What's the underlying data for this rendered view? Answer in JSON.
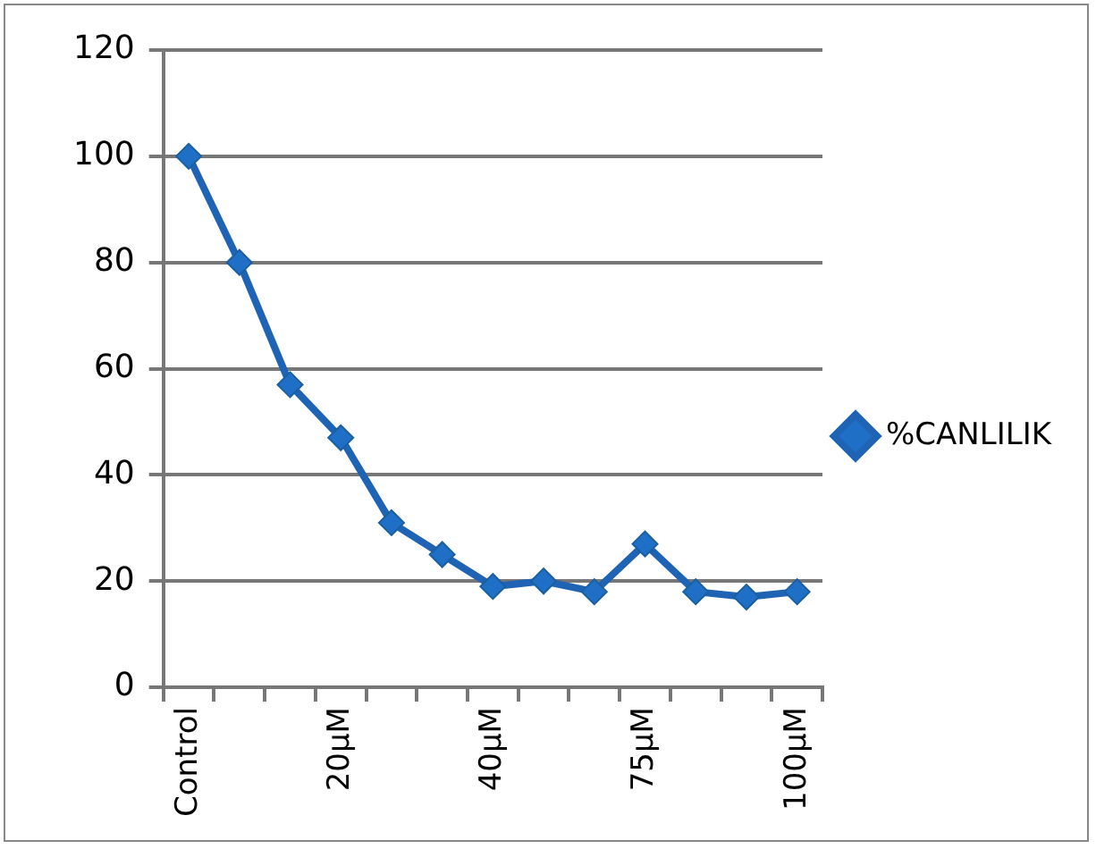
{
  "chart_data": {
    "type": "line",
    "categories": [
      "Control",
      null,
      null,
      "20µM",
      null,
      null,
      "40µM",
      null,
      null,
      "75µM",
      null,
      null,
      "100µM"
    ],
    "series": [
      {
        "name": "%CANLILIK",
        "color": "#1f64b4",
        "values": [
          100,
          80,
          57,
          47,
          31,
          25,
          19,
          20,
          18,
          27,
          18,
          17,
          18
        ]
      }
    ],
    "ylim": [
      0,
      120
    ],
    "yticks": [
      0,
      20,
      40,
      60,
      80,
      100,
      120
    ],
    "grid": "y",
    "legend": "right",
    "marker": "diamond",
    "line_style": "solid"
  }
}
